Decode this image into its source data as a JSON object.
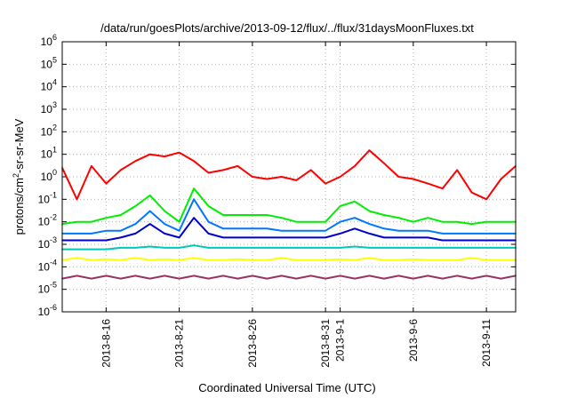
{
  "chart_data": {
    "type": "line",
    "title": "/data/run/goesPlots/archive/2013-09-12/flux/../flux/31daysMoonFluxes.txt",
    "xlabel": "Coordinated Universal Time (UTC)",
    "ylabel": "protons/cm2-sr-sr-MeV",
    "yscale": "log",
    "xlim": [
      "2013-08-13",
      "2013-09-13"
    ],
    "ylim": [
      1e-06,
      1000000.0
    ],
    "grid": true,
    "legend": "none",
    "x_ticks": [
      {
        "label": "2013-8-16",
        "date": "2013-08-16"
      },
      {
        "label": "2013-8-21",
        "date": "2013-08-21"
      },
      {
        "label": "2013-8-26",
        "date": "2013-08-26"
      },
      {
        "label": "2013-8-31",
        "date": "2013-08-31"
      },
      {
        "label": "2013-9-1",
        "date": "2013-09-01"
      },
      {
        "label": "2013-9-6",
        "date": "2013-09-06"
      },
      {
        "label": "2013-9-11",
        "date": "2013-09-11"
      }
    ],
    "y_ticks": [
      {
        "base": "10",
        "exp": "-6",
        "value": 1e-06
      },
      {
        "base": "10",
        "exp": "-5",
        "value": 1e-05
      },
      {
        "base": "10",
        "exp": "-4",
        "value": 0.0001
      },
      {
        "base": "10",
        "exp": "-3",
        "value": 0.001
      },
      {
        "base": "10",
        "exp": "-2",
        "value": 0.01
      },
      {
        "base": "10",
        "exp": "-1",
        "value": 0.1
      },
      {
        "base": "10",
        "exp": "0",
        "value": 1
      },
      {
        "base": "10",
        "exp": "1",
        "value": 10
      },
      {
        "base": "10",
        "exp": "2",
        "value": 100
      },
      {
        "base": "10",
        "exp": "3",
        "value": 1000
      },
      {
        "base": "10",
        "exp": "4",
        "value": 10000
      },
      {
        "base": "10",
        "exp": "5",
        "value": 100000
      },
      {
        "base": "10",
        "exp": "6",
        "value": 1000000
      }
    ],
    "x": [
      "2013-08-13",
      "2013-08-14",
      "2013-08-15",
      "2013-08-16",
      "2013-08-17",
      "2013-08-18",
      "2013-08-19",
      "2013-08-20",
      "2013-08-21",
      "2013-08-22",
      "2013-08-23",
      "2013-08-24",
      "2013-08-25",
      "2013-08-26",
      "2013-08-27",
      "2013-08-28",
      "2013-08-29",
      "2013-08-30",
      "2013-08-31",
      "2013-09-01",
      "2013-09-02",
      "2013-09-03",
      "2013-09-04",
      "2013-09-05",
      "2013-09-06",
      "2013-09-07",
      "2013-09-08",
      "2013-09-09",
      "2013-09-10",
      "2013-09-11",
      "2013-09-12",
      "2013-09-13"
    ],
    "series": [
      {
        "color": "#ff0000",
        "values": [
          2.5,
          0.1,
          3,
          0.5,
          2,
          5,
          10,
          8,
          12,
          5,
          1.5,
          2,
          3,
          1,
          0.8,
          1,
          0.7,
          2,
          0.5,
          1,
          3,
          15,
          4,
          1,
          0.8,
          0.5,
          0.3,
          2,
          0.2,
          0.1,
          0.8,
          3
        ]
      },
      {
        "color": "#00ee00",
        "values": [
          0.008,
          0.01,
          0.01,
          0.015,
          0.02,
          0.05,
          0.15,
          0.03,
          0.01,
          0.3,
          0.05,
          0.02,
          0.02,
          0.02,
          0.02,
          0.015,
          0.01,
          0.01,
          0.01,
          0.05,
          0.08,
          0.03,
          0.02,
          0.015,
          0.01,
          0.015,
          0.01,
          0.01,
          0.008,
          0.01,
          0.01,
          0.01
        ]
      },
      {
        "color": "#0077ff",
        "values": [
          0.003,
          0.003,
          0.003,
          0.004,
          0.004,
          0.008,
          0.03,
          0.008,
          0.004,
          0.1,
          0.01,
          0.005,
          0.005,
          0.005,
          0.005,
          0.004,
          0.004,
          0.004,
          0.004,
          0.01,
          0.015,
          0.008,
          0.005,
          0.004,
          0.004,
          0.004,
          0.003,
          0.003,
          0.003,
          0.003,
          0.003,
          0.003
        ]
      },
      {
        "color": "#0000cc",
        "values": [
          0.0015,
          0.0015,
          0.0015,
          0.0015,
          0.002,
          0.003,
          0.008,
          0.003,
          0.002,
          0.015,
          0.003,
          0.002,
          0.002,
          0.002,
          0.002,
          0.002,
          0.002,
          0.002,
          0.002,
          0.003,
          0.005,
          0.003,
          0.002,
          0.002,
          0.002,
          0.002,
          0.0015,
          0.0015,
          0.0015,
          0.0015,
          0.0015,
          0.0015
        ]
      },
      {
        "color": "#00c8b4",
        "values": [
          0.0006,
          0.0006,
          0.0006,
          0.0006,
          0.0007,
          0.0007,
          0.0008,
          0.0007,
          0.0007,
          0.0009,
          0.0007,
          0.0007,
          0.0007,
          0.0007,
          0.0007,
          0.0007,
          0.0007,
          0.0007,
          0.0007,
          0.0007,
          0.0008,
          0.0007,
          0.0007,
          0.0007,
          0.0007,
          0.0007,
          0.0007,
          0.0007,
          0.0007,
          0.0007,
          0.0007,
          0.0007
        ]
      },
      {
        "color": "#ffff00",
        "values": [
          0.0002,
          0.00025,
          0.0002,
          0.00022,
          0.0002,
          0.00025,
          0.0002,
          0.00022,
          0.0002,
          0.00025,
          0.0002,
          0.0002,
          0.00022,
          0.0002,
          0.0002,
          0.00025,
          0.0002,
          0.0002,
          0.0002,
          0.00022,
          0.0002,
          0.00025,
          0.0002,
          0.0002,
          0.00022,
          0.0002,
          0.0002,
          0.0002,
          0.00025,
          0.0002,
          0.0002,
          0.0002
        ]
      },
      {
        "color": "#993366",
        "values": [
          3e-05,
          4e-05,
          3e-05,
          4e-05,
          3e-05,
          4e-05,
          3e-05,
          4e-05,
          3e-05,
          4e-05,
          3e-05,
          4e-05,
          3e-05,
          4e-05,
          3e-05,
          4e-05,
          3e-05,
          4e-05,
          3e-05,
          4e-05,
          3e-05,
          4e-05,
          3e-05,
          4e-05,
          3e-05,
          4e-05,
          3e-05,
          4e-05,
          3e-05,
          4e-05,
          3e-05,
          4e-05
        ]
      }
    ]
  }
}
